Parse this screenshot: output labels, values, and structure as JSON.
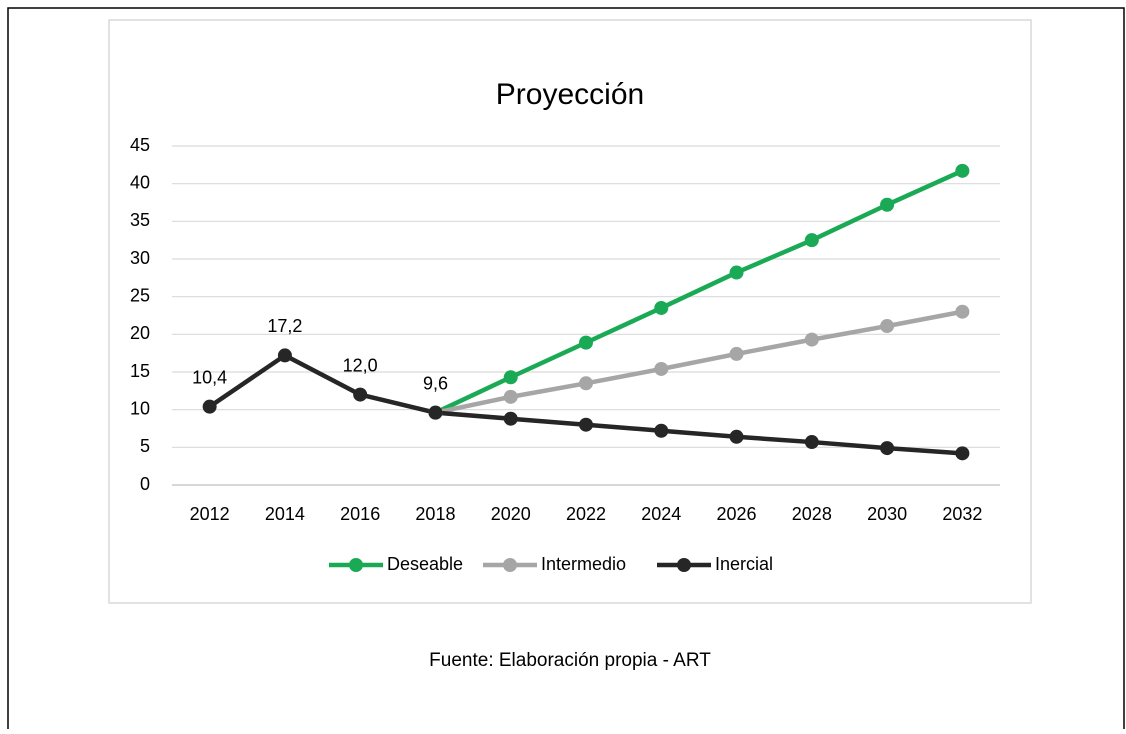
{
  "chart_data": {
    "type": "line",
    "title": "Proyección",
    "categories": [
      "2012",
      "2014",
      "2016",
      "2018",
      "2020",
      "2022",
      "2024",
      "2026",
      "2028",
      "2030",
      "2032"
    ],
    "series": [
      {
        "name": "Deseable",
        "color": "#1aaa55",
        "values": [
          null,
          null,
          null,
          9.6,
          14.3,
          18.9,
          23.5,
          28.2,
          32.5,
          37.2,
          41.7
        ]
      },
      {
        "name": "Intermedio",
        "color": "#a6a6a6",
        "values": [
          null,
          null,
          null,
          9.6,
          11.7,
          13.5,
          15.4,
          17.4,
          19.3,
          21.1,
          23.0
        ]
      },
      {
        "name": "Inercial",
        "color": "#262626",
        "values": [
          10.4,
          17.2,
          12.0,
          9.6,
          8.8,
          8.0,
          7.2,
          6.4,
          5.7,
          4.9,
          4.2
        ],
        "value_labels": [
          "10,4",
          "17,2",
          "12,0",
          "9,6",
          null,
          null,
          null,
          null,
          null,
          null,
          null
        ]
      }
    ],
    "ylim": [
      0,
      45
    ],
    "yticks": [
      0,
      5,
      10,
      15,
      20,
      25,
      30,
      35,
      40,
      45
    ],
    "grid": true,
    "legend": "bottom"
  },
  "caption": "Fuente: Elaboración propia - ART"
}
